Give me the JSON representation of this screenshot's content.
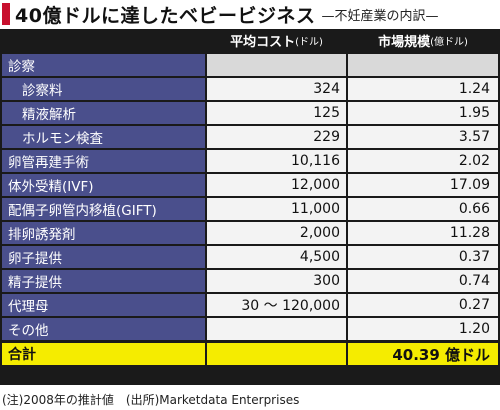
{
  "title": {
    "main": "40億ドルに達したベビービジネス",
    "sub": "—不妊産業の内訳—"
  },
  "table": {
    "header": {
      "cost": "平均コスト",
      "cost_unit": "(ドル)",
      "size": "市場規模",
      "size_unit": "(億ドル)"
    },
    "rows": [
      {
        "label": "診察",
        "cost": "",
        "size": "",
        "type": "parent"
      },
      {
        "label": "診察料",
        "cost": "324",
        "size": "1.24",
        "type": "sub"
      },
      {
        "label": "精液解析",
        "cost": "125",
        "size": "1.95",
        "type": "sub"
      },
      {
        "label": "ホルモン検査",
        "cost": "229",
        "size": "3.57",
        "type": "sub"
      },
      {
        "label": "卵管再建手術",
        "cost": "10,116",
        "size": "2.02",
        "type": "item"
      },
      {
        "label": "体外受精(IVF)",
        "cost": "12,000",
        "size": "17.09",
        "type": "item"
      },
      {
        "label": "配偶子卵管内移植(GIFT)",
        "cost": "11,000",
        "size": "0.66",
        "type": "item"
      },
      {
        "label": "排卵誘発剤",
        "cost": "2,000",
        "size": "11.28",
        "type": "item"
      },
      {
        "label": "卵子提供",
        "cost": "4,500",
        "size": "0.37",
        "type": "item"
      },
      {
        "label": "精子提供",
        "cost": "300",
        "size": "0.74",
        "type": "item"
      },
      {
        "label": "代理母",
        "cost": "30 ～ 120,000",
        "size": "0.27",
        "type": "item"
      },
      {
        "label": "その他",
        "cost": "",
        "size": "1.20",
        "type": "item"
      }
    ],
    "total": {
      "label": "合計",
      "cost": "",
      "size": "40.39 億ドル"
    }
  },
  "footnote": "(注)2008年の推計値　(出所)Marketdata Enterprises",
  "colors": {
    "label_bg": "#4a4f8c",
    "value_bg": "#f3f3f3",
    "value_bg_alt": "#d9d9d9",
    "total_bg": "#f5ec00",
    "title_mark": "#c8102e",
    "frame": "#1a1a1a"
  }
}
